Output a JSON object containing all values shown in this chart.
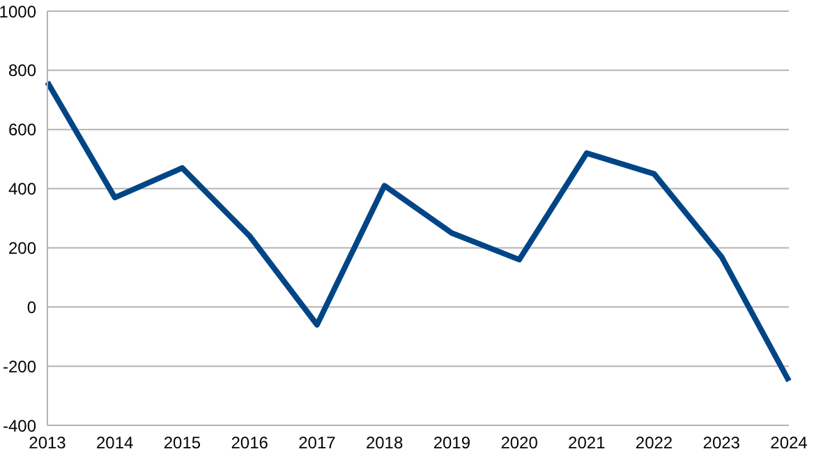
{
  "chart_data": {
    "type": "line",
    "categories": [
      "2013",
      "2014",
      "2015",
      "2016",
      "2017",
      "2018",
      "2019",
      "2020",
      "2021",
      "2022",
      "2023",
      "2024"
    ],
    "series": [
      {
        "color": "#004586",
        "values": [
          760,
          370,
          470,
          240,
          -60,
          410,
          250,
          160,
          520,
          450,
          170,
          -250
        ]
      }
    ],
    "ylim": [
      -400,
      1000
    ],
    "yticks": [
      -400,
      -200,
      0,
      200,
      400,
      600,
      800,
      1000
    ],
    "grid": "y",
    "legend": false,
    "marker": "none",
    "line_style": "solid"
  }
}
